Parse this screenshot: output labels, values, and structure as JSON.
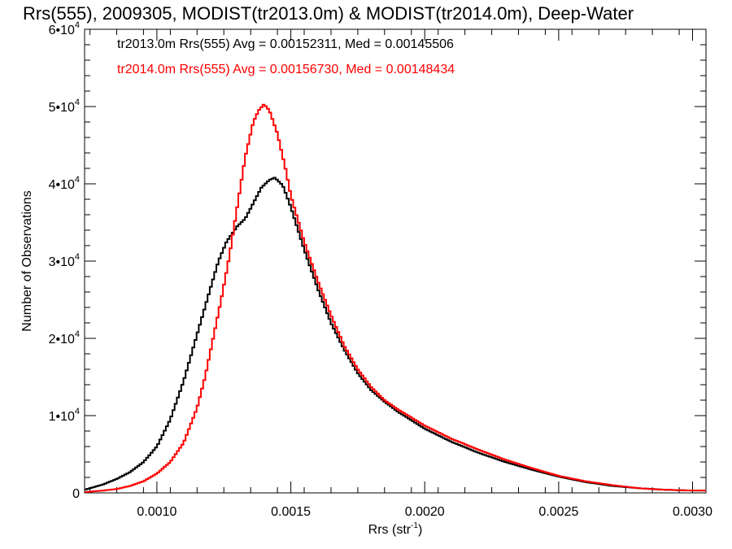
{
  "chart_data": {
    "type": "line",
    "title": "Rrs(555), 2009305, MODIST(tr2013.0m) & MODIST(tr2014.0m), Deep-Water",
    "xlabel": "Rrs (str",
    "xlabel_sup": "-1",
    "xlabel_end": ")",
    "ylabel": "Number of Observations",
    "xlim": [
      0.00073,
      0.00305
    ],
    "ylim": [
      0,
      60000
    ],
    "xticks": [
      {
        "value": 0.001,
        "label": "0.0010"
      },
      {
        "value": 0.0015,
        "label": "0.0015"
      },
      {
        "value": 0.002,
        "label": "0.0020"
      },
      {
        "value": 0.0025,
        "label": "0.0025"
      },
      {
        "value": 0.003,
        "label": "0.0030"
      }
    ],
    "yticks": [
      {
        "value": 0,
        "base": "0",
        "exp": ""
      },
      {
        "value": 10000,
        "base": "1•10",
        "exp": "4"
      },
      {
        "value": 20000,
        "base": "2•10",
        "exp": "4"
      },
      {
        "value": 30000,
        "base": "3•10",
        "exp": "4"
      },
      {
        "value": 40000,
        "base": "4•10",
        "exp": "4"
      },
      {
        "value": 50000,
        "base": "5•10",
        "exp": "4"
      },
      {
        "value": 60000,
        "base": "6•10",
        "exp": "4"
      }
    ],
    "grid": false,
    "legend_position": "top-left",
    "annotations": [
      {
        "text": "tr2013.0m Rrs(555) Avg = 0.00152311, Med = 0.00145506",
        "color": "#000000"
      },
      {
        "text": "tr2014.0m Rrs(555) Avg = 0.00156730, Med = 0.00148434",
        "color": "#ff0000"
      }
    ],
    "series": [
      {
        "name": "tr2013.0m",
        "color": "#000000",
        "x": [
          0.00073,
          0.0008,
          0.00085,
          0.0009,
          0.00095,
          0.001,
          0.00105,
          0.0011,
          0.00115,
          0.0012,
          0.00123,
          0.00126,
          0.0013,
          0.00133,
          0.00136,
          0.00139,
          0.00142,
          0.00144,
          0.00147,
          0.0015,
          0.00155,
          0.0016,
          0.00165,
          0.0017,
          0.00175,
          0.0018,
          0.00185,
          0.0019,
          0.002,
          0.0021,
          0.0022,
          0.0023,
          0.0024,
          0.0025,
          0.0026,
          0.0027,
          0.0028,
          0.0029,
          0.003,
          0.00305
        ],
        "y": [
          400,
          1100,
          1800,
          2700,
          4000,
          6000,
          9500,
          14500,
          20500,
          26500,
          30000,
          32500,
          34500,
          35500,
          37500,
          39500,
          40500,
          40800,
          39800,
          37000,
          31500,
          26500,
          22000,
          18500,
          15500,
          13300,
          11800,
          10500,
          8300,
          6600,
          5200,
          4000,
          3000,
          2100,
          1400,
          900,
          600,
          400,
          300,
          300
        ]
      },
      {
        "name": "tr2014.0m",
        "color": "#ff0000",
        "x": [
          0.00073,
          0.0008,
          0.00085,
          0.0009,
          0.00095,
          0.001,
          0.00105,
          0.0011,
          0.00115,
          0.00118,
          0.00121,
          0.00124,
          0.00127,
          0.0013,
          0.00133,
          0.00136,
          0.00138,
          0.0014,
          0.00142,
          0.00145,
          0.00148,
          0.0015,
          0.00155,
          0.0016,
          0.00165,
          0.0017,
          0.00175,
          0.0018,
          0.00185,
          0.0019,
          0.002,
          0.0021,
          0.0022,
          0.0023,
          0.0024,
          0.0025,
          0.0026,
          0.0027,
          0.0028,
          0.0029,
          0.003,
          0.00305
        ],
        "y": [
          100,
          300,
          500,
          900,
          1500,
          2500,
          4000,
          6500,
          11000,
          15000,
          20000,
          25000,
          30500,
          37000,
          43500,
          48000,
          49500,
          50300,
          49500,
          46500,
          42000,
          38500,
          32500,
          27500,
          23000,
          19000,
          16000,
          13700,
          12000,
          10800,
          8700,
          7000,
          5600,
          4300,
          3200,
          2200,
          1500,
          1000,
          600,
          400,
          300,
          300
        ]
      }
    ]
  }
}
